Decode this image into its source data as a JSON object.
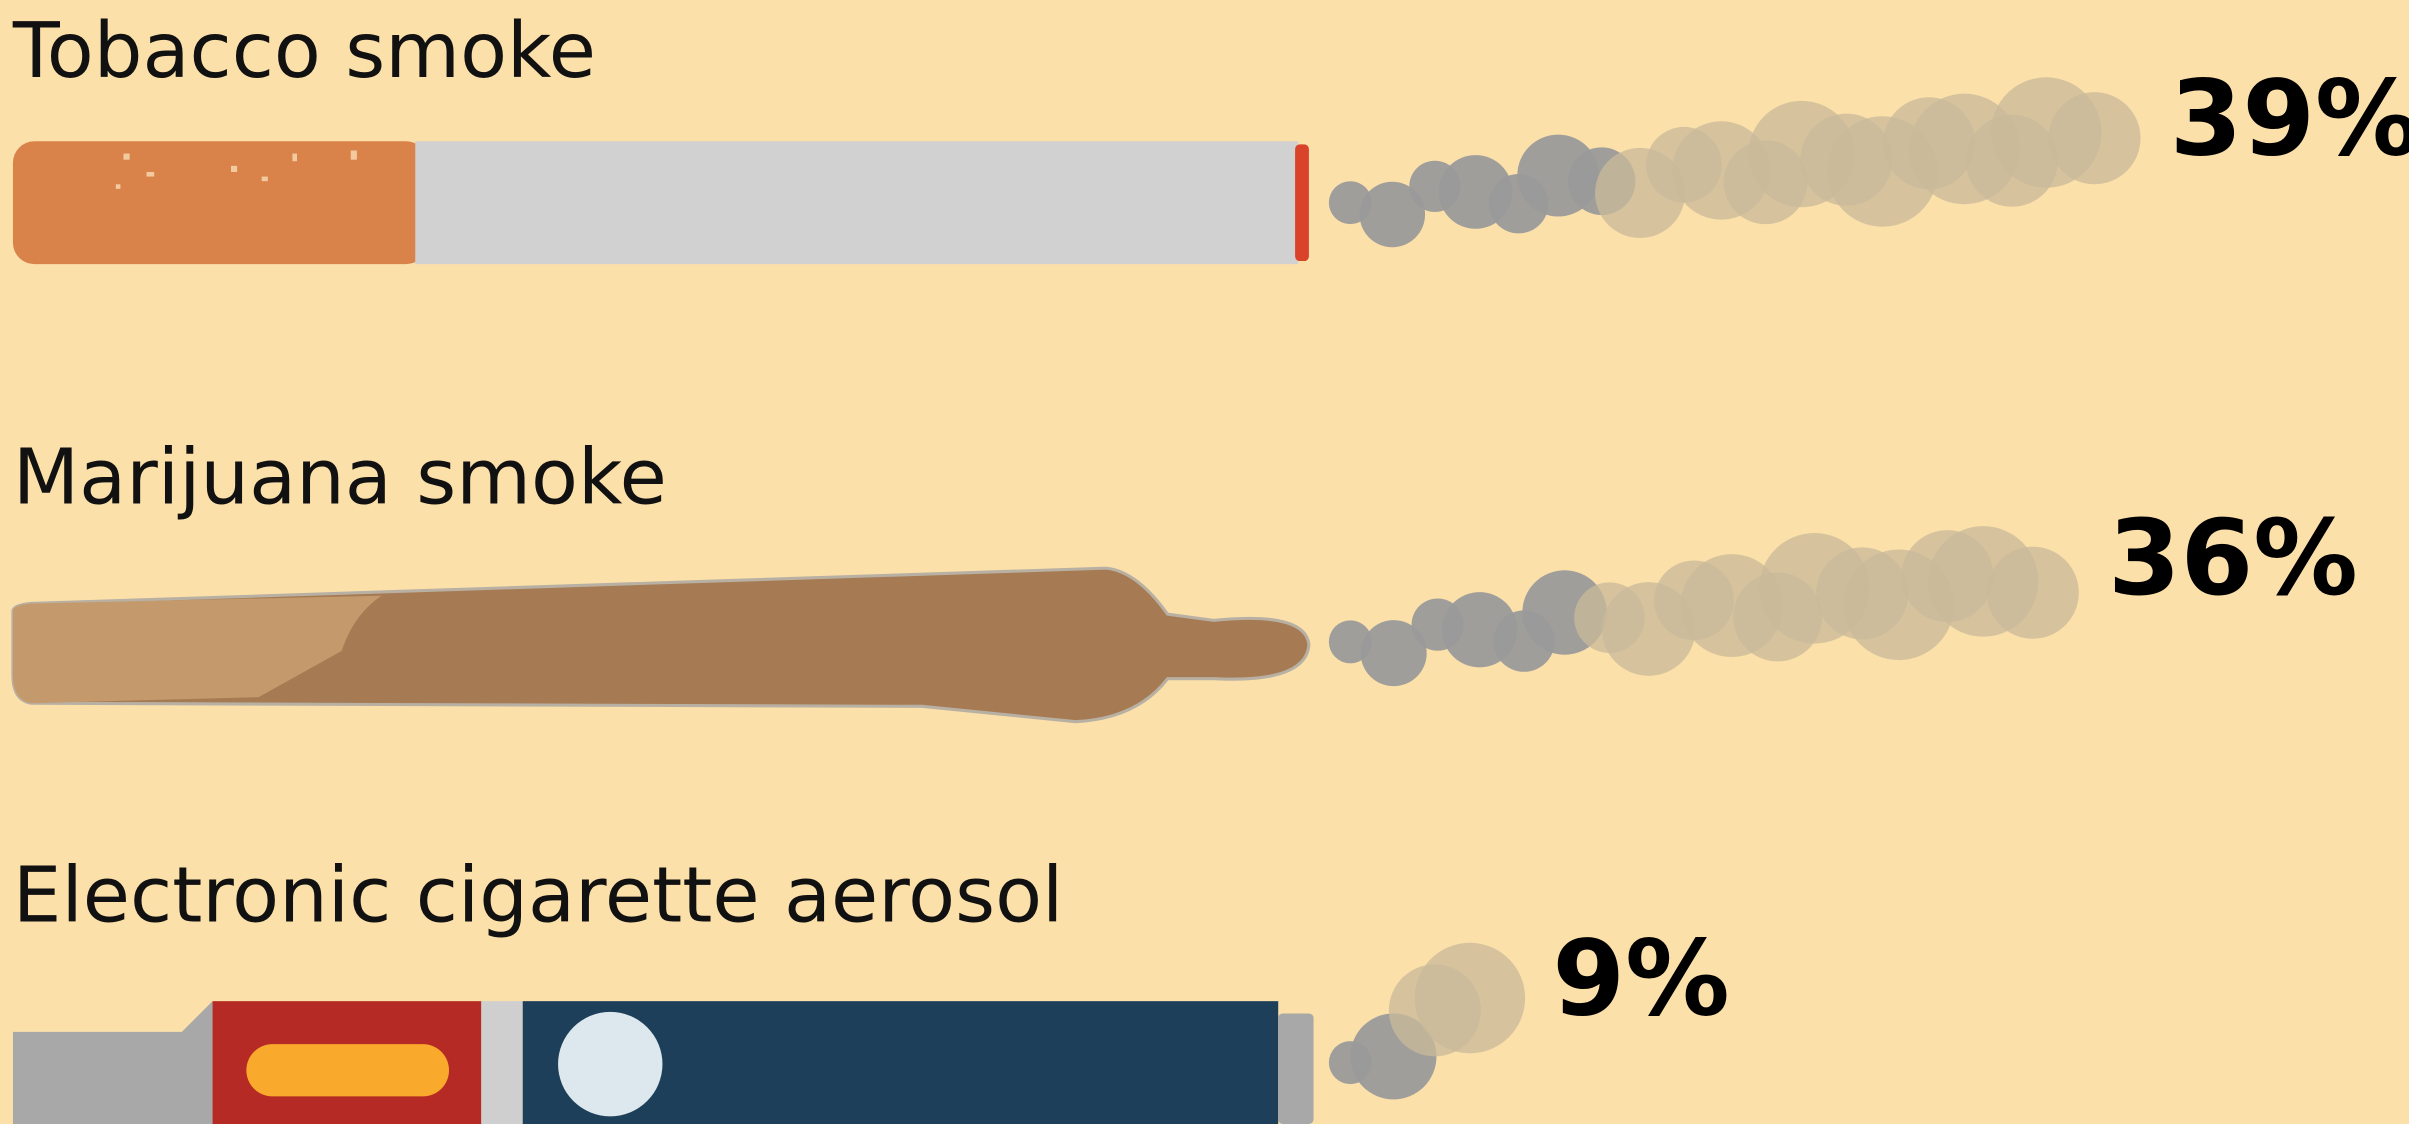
{
  "chart_data": {
    "type": "bar",
    "categories": [
      "Tobacco smoke",
      "Marijuana smoke",
      "Electronic cigarette aerosol"
    ],
    "values": [
      39,
      36,
      9
    ],
    "value_labels": [
      "39%",
      "36%",
      "9%"
    ]
  }
}
